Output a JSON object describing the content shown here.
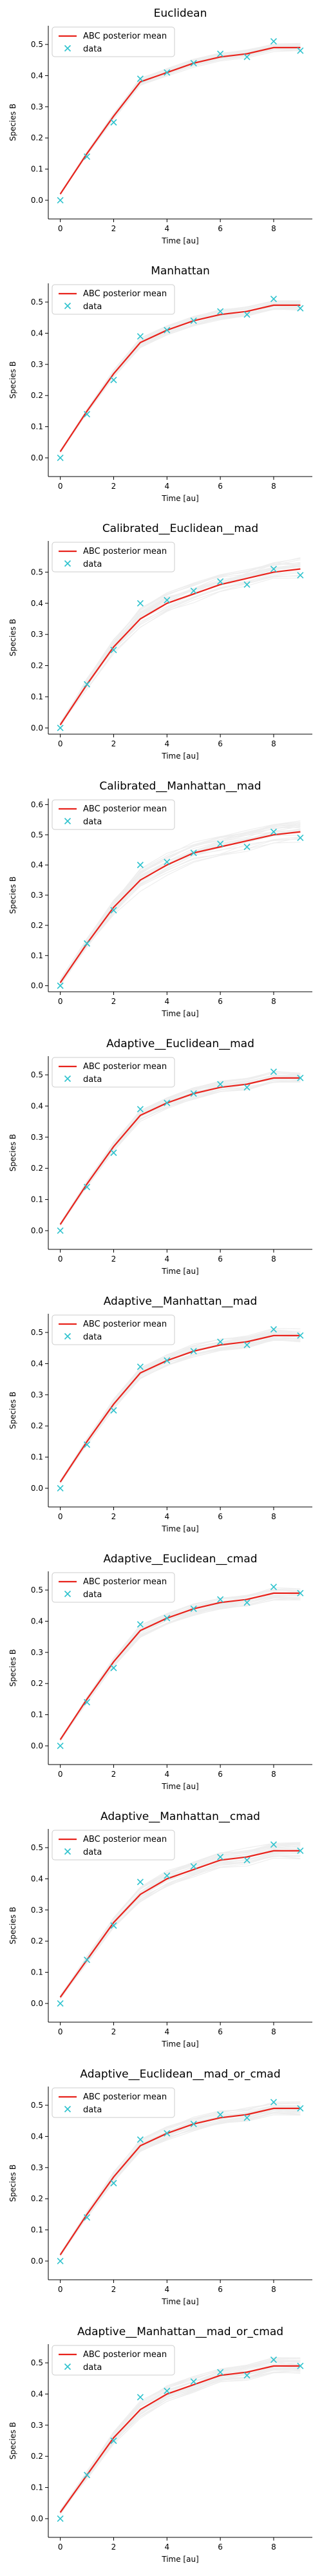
{
  "colors": {
    "posterior_mean": "#e8231c",
    "data_marker": "#2fc3ce",
    "samples": "#8a8a8a",
    "axes": "#000000"
  },
  "legend": {
    "posterior_label": "ABC posterior mean",
    "data_label": "data",
    "placement": "upper-left"
  },
  "chart_data": [
    {
      "type": "line",
      "title": "Euclidean",
      "xlabel": "Time [au]",
      "ylabel": "Species B",
      "xlim": [
        -0.45,
        9.45
      ],
      "ylim": [
        -0.06,
        0.56
      ],
      "xticks": [
        0,
        2,
        4,
        6,
        8
      ],
      "yticks": [
        0.0,
        0.1,
        0.2,
        0.3,
        0.4,
        0.5
      ],
      "spread": 0.015,
      "grid": false,
      "x": [
        0,
        1,
        2,
        3,
        4,
        5,
        6,
        7,
        8,
        9
      ],
      "data": [
        0.0,
        0.14,
        0.25,
        0.39,
        0.41,
        0.44,
        0.47,
        0.46,
        0.51,
        0.48
      ],
      "posterior_mean": [
        0.02,
        0.15,
        0.27,
        0.38,
        0.41,
        0.44,
        0.46,
        0.47,
        0.49,
        0.49
      ]
    },
    {
      "type": "line",
      "title": "Manhattan",
      "xlabel": "Time [au]",
      "ylabel": "Species B",
      "xlim": [
        -0.45,
        9.45
      ],
      "ylim": [
        -0.06,
        0.56
      ],
      "xticks": [
        0,
        2,
        4,
        6,
        8
      ],
      "yticks": [
        0.0,
        0.1,
        0.2,
        0.3,
        0.4,
        0.5
      ],
      "spread": 0.015,
      "grid": false,
      "x": [
        0,
        1,
        2,
        3,
        4,
        5,
        6,
        7,
        8,
        9
      ],
      "data": [
        0.0,
        0.14,
        0.25,
        0.39,
        0.41,
        0.44,
        0.47,
        0.46,
        0.51,
        0.48
      ],
      "posterior_mean": [
        0.02,
        0.15,
        0.27,
        0.37,
        0.41,
        0.44,
        0.46,
        0.47,
        0.49,
        0.49
      ]
    },
    {
      "type": "line",
      "title": "Calibrated__Euclidean__mad",
      "xlabel": "Time [au]",
      "ylabel": "Species B",
      "xlim": [
        -0.45,
        9.45
      ],
      "ylim": [
        -0.02,
        0.6
      ],
      "xticks": [
        0,
        2,
        4,
        6,
        8
      ],
      "yticks": [
        0.0,
        0.1,
        0.2,
        0.3,
        0.4,
        0.5
      ],
      "spread": 0.035,
      "grid": false,
      "x": [
        0,
        1,
        2,
        3,
        4,
        5,
        6,
        7,
        8,
        9
      ],
      "data": [
        0.0,
        0.14,
        0.25,
        0.4,
        0.41,
        0.44,
        0.47,
        0.46,
        0.51,
        0.49
      ],
      "posterior_mean": [
        0.01,
        0.14,
        0.26,
        0.35,
        0.4,
        0.43,
        0.46,
        0.48,
        0.5,
        0.51
      ]
    },
    {
      "type": "line",
      "title": "Calibrated__Manhattan__mad",
      "xlabel": "Time [au]",
      "ylabel": "Species B",
      "xlim": [
        -0.45,
        9.45
      ],
      "ylim": [
        -0.02,
        0.62
      ],
      "xticks": [
        0,
        2,
        4,
        6,
        8
      ],
      "yticks": [
        0.0,
        0.1,
        0.2,
        0.3,
        0.4,
        0.5,
        0.6
      ],
      "spread": 0.035,
      "grid": false,
      "x": [
        0,
        1,
        2,
        3,
        4,
        5,
        6,
        7,
        8,
        9
      ],
      "data": [
        0.0,
        0.14,
        0.25,
        0.4,
        0.41,
        0.44,
        0.47,
        0.46,
        0.51,
        0.49
      ],
      "posterior_mean": [
        0.01,
        0.14,
        0.26,
        0.35,
        0.4,
        0.44,
        0.46,
        0.48,
        0.5,
        0.51
      ]
    },
    {
      "type": "line",
      "title": "Adaptive__Euclidean__mad",
      "xlabel": "Time [au]",
      "ylabel": "Species B",
      "xlim": [
        -0.45,
        9.45
      ],
      "ylim": [
        -0.06,
        0.56
      ],
      "xticks": [
        0,
        2,
        4,
        6,
        8
      ],
      "yticks": [
        0.0,
        0.1,
        0.2,
        0.3,
        0.4,
        0.5
      ],
      "spread": 0.02,
      "grid": false,
      "x": [
        0,
        1,
        2,
        3,
        4,
        5,
        6,
        7,
        8,
        9
      ],
      "data": [
        0.0,
        0.14,
        0.25,
        0.39,
        0.41,
        0.44,
        0.47,
        0.46,
        0.51,
        0.49
      ],
      "posterior_mean": [
        0.02,
        0.15,
        0.27,
        0.37,
        0.41,
        0.44,
        0.46,
        0.47,
        0.49,
        0.49
      ]
    },
    {
      "type": "line",
      "title": "Adaptive__Manhattan__mad",
      "xlabel": "Time [au]",
      "ylabel": "Species B",
      "xlim": [
        -0.45,
        9.45
      ],
      "ylim": [
        -0.06,
        0.56
      ],
      "xticks": [
        0,
        2,
        4,
        6,
        8
      ],
      "yticks": [
        0.0,
        0.1,
        0.2,
        0.3,
        0.4,
        0.5
      ],
      "spread": 0.02,
      "grid": false,
      "x": [
        0,
        1,
        2,
        3,
        4,
        5,
        6,
        7,
        8,
        9
      ],
      "data": [
        0.0,
        0.14,
        0.25,
        0.39,
        0.41,
        0.44,
        0.47,
        0.46,
        0.51,
        0.49
      ],
      "posterior_mean": [
        0.02,
        0.15,
        0.27,
        0.37,
        0.41,
        0.44,
        0.46,
        0.47,
        0.49,
        0.49
      ]
    },
    {
      "type": "line",
      "title": "Adaptive__Euclidean__cmad",
      "xlabel": "Time [au]",
      "ylabel": "Species B",
      "xlim": [
        -0.45,
        9.45
      ],
      "ylim": [
        -0.06,
        0.56
      ],
      "xticks": [
        0,
        2,
        4,
        6,
        8
      ],
      "yticks": [
        0.0,
        0.1,
        0.2,
        0.3,
        0.4,
        0.5
      ],
      "spread": 0.02,
      "grid": false,
      "x": [
        0,
        1,
        2,
        3,
        4,
        5,
        6,
        7,
        8,
        9
      ],
      "data": [
        0.0,
        0.14,
        0.25,
        0.39,
        0.41,
        0.44,
        0.47,
        0.46,
        0.51,
        0.49
      ],
      "posterior_mean": [
        0.02,
        0.15,
        0.27,
        0.37,
        0.41,
        0.44,
        0.46,
        0.47,
        0.49,
        0.49
      ]
    },
    {
      "type": "line",
      "title": "Adaptive__Manhattan__cmad",
      "xlabel": "Time [au]",
      "ylabel": "Species B",
      "xlim": [
        -0.45,
        9.45
      ],
      "ylim": [
        -0.06,
        0.56
      ],
      "xticks": [
        0,
        2,
        4,
        6,
        8
      ],
      "yticks": [
        0.0,
        0.1,
        0.2,
        0.3,
        0.4,
        0.5
      ],
      "spread": 0.025,
      "grid": false,
      "x": [
        0,
        1,
        2,
        3,
        4,
        5,
        6,
        7,
        8,
        9
      ],
      "data": [
        0.0,
        0.14,
        0.25,
        0.39,
        0.41,
        0.44,
        0.47,
        0.46,
        0.51,
        0.49
      ],
      "posterior_mean": [
        0.02,
        0.14,
        0.26,
        0.35,
        0.4,
        0.43,
        0.46,
        0.47,
        0.49,
        0.49
      ]
    },
    {
      "type": "line",
      "title": "Adaptive__Euclidean__mad_or_cmad",
      "xlabel": "Time [au]",
      "ylabel": "Species B",
      "xlim": [
        -0.45,
        9.45
      ],
      "ylim": [
        -0.06,
        0.56
      ],
      "xticks": [
        0,
        2,
        4,
        6,
        8
      ],
      "yticks": [
        0.0,
        0.1,
        0.2,
        0.3,
        0.4,
        0.5
      ],
      "spread": 0.02,
      "grid": false,
      "x": [
        0,
        1,
        2,
        3,
        4,
        5,
        6,
        7,
        8,
        9
      ],
      "data": [
        0.0,
        0.14,
        0.25,
        0.39,
        0.41,
        0.44,
        0.47,
        0.46,
        0.51,
        0.49
      ],
      "posterior_mean": [
        0.02,
        0.15,
        0.27,
        0.37,
        0.41,
        0.44,
        0.46,
        0.47,
        0.49,
        0.49
      ]
    },
    {
      "type": "line",
      "title": "Adaptive__Manhattan__mad_or_cmad",
      "xlabel": "Time [au]",
      "ylabel": "Species B",
      "xlim": [
        -0.45,
        9.45
      ],
      "ylim": [
        -0.06,
        0.56
      ],
      "xticks": [
        0,
        2,
        4,
        6,
        8
      ],
      "yticks": [
        0.0,
        0.1,
        0.2,
        0.3,
        0.4,
        0.5
      ],
      "spread": 0.025,
      "grid": false,
      "x": [
        0,
        1,
        2,
        3,
        4,
        5,
        6,
        7,
        8,
        9
      ],
      "data": [
        0.0,
        0.14,
        0.25,
        0.39,
        0.41,
        0.44,
        0.47,
        0.46,
        0.51,
        0.49
      ],
      "posterior_mean": [
        0.02,
        0.14,
        0.26,
        0.35,
        0.4,
        0.43,
        0.46,
        0.47,
        0.49,
        0.49
      ]
    }
  ]
}
